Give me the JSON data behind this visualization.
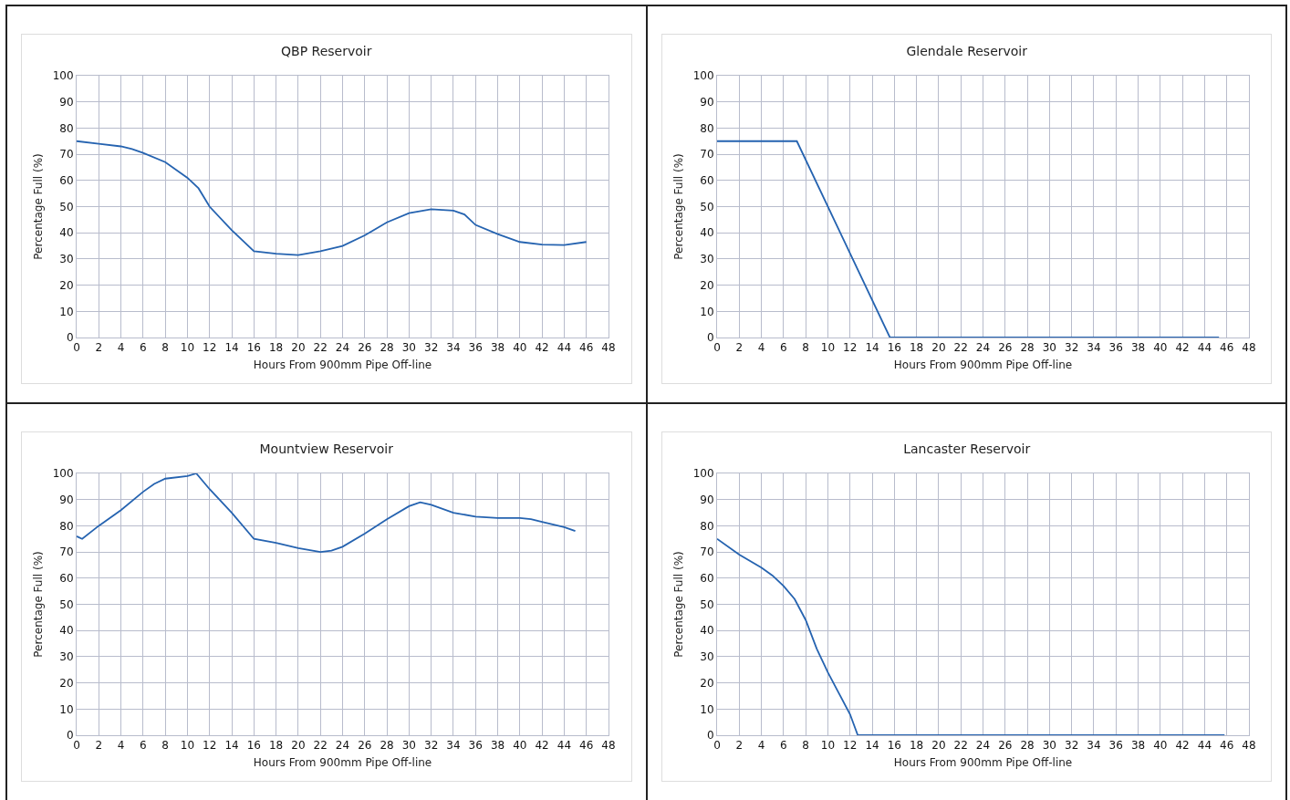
{
  "chart_data": [
    {
      "type": "line",
      "title": "QBP Reservoir",
      "xlabel": "Hours From 900mm Pipe Off-line",
      "ylabel": "Percentage Full (%)",
      "xlim": [
        0,
        48
      ],
      "xticks": [
        0,
        2,
        4,
        6,
        8,
        10,
        12,
        14,
        16,
        18,
        20,
        22,
        24,
        26,
        28,
        30,
        32,
        34,
        36,
        38,
        40,
        42,
        44,
        46,
        48
      ],
      "ylim": [
        0,
        100
      ],
      "yticks": [
        0,
        10,
        20,
        30,
        40,
        50,
        60,
        70,
        80,
        90,
        100
      ],
      "grid": true,
      "marker": "none",
      "line_style": "solid",
      "series": [
        {
          "color": "#2563b0",
          "x": [
            0,
            2,
            4,
            5,
            6,
            8,
            10,
            11,
            12,
            14,
            16,
            18,
            20,
            22,
            24,
            26,
            28,
            30,
            32,
            34,
            35,
            36,
            38,
            40,
            42,
            44,
            46
          ],
          "values": [
            75,
            74,
            73,
            72,
            70.5,
            67,
            61,
            57,
            50,
            41,
            33,
            32,
            31.5,
            33,
            35,
            39,
            44,
            47.5,
            49,
            48.5,
            47,
            43,
            39.5,
            36.5,
            35.5,
            35.3,
            36.5
          ]
        }
      ]
    },
    {
      "type": "line",
      "title": "Glendale Reservoir",
      "xlabel": "Hours From 900mm Pipe Off-line",
      "ylabel": "Percentage Full (%)",
      "xlim": [
        0,
        48
      ],
      "xticks": [
        0,
        2,
        4,
        6,
        8,
        10,
        12,
        14,
        16,
        18,
        20,
        22,
        24,
        26,
        28,
        30,
        32,
        34,
        36,
        38,
        40,
        42,
        44,
        46,
        48
      ],
      "ylim": [
        0,
        100
      ],
      "yticks": [
        0,
        10,
        20,
        30,
        40,
        50,
        60,
        70,
        80,
        90,
        100
      ],
      "grid": true,
      "marker": "none",
      "line_style": "solid",
      "series": [
        {
          "color": "#2563b0",
          "x": [
            0,
            7.2,
            15.6,
            45.3
          ],
          "values": [
            75,
            75,
            0,
            0
          ]
        }
      ]
    },
    {
      "type": "line",
      "title": "Mountview Reservoir",
      "xlabel": "Hours From 900mm Pipe Off-line",
      "ylabel": "Percentage Full (%)",
      "xlim": [
        0,
        48
      ],
      "xticks": [
        0,
        2,
        4,
        6,
        8,
        10,
        12,
        14,
        16,
        18,
        20,
        22,
        24,
        26,
        28,
        30,
        32,
        34,
        36,
        38,
        40,
        42,
        44,
        46,
        48
      ],
      "ylim": [
        0,
        100
      ],
      "yticks": [
        0,
        10,
        20,
        30,
        40,
        50,
        60,
        70,
        80,
        90,
        100
      ],
      "grid": true,
      "marker": "none",
      "line_style": "solid",
      "series": [
        {
          "color": "#2563b0",
          "x": [
            0,
            0.5,
            2,
            4,
            6,
            7,
            8,
            10,
            10.8,
            12,
            14,
            16,
            18,
            20,
            22,
            23,
            24,
            26,
            28,
            30,
            31,
            32,
            34,
            36,
            38,
            40,
            41,
            42,
            44,
            45
          ],
          "values": [
            76,
            75,
            80,
            86,
            93,
            96,
            98,
            99,
            100,
            94,
            85,
            75,
            73.5,
            71.5,
            70,
            70.5,
            72,
            77,
            82.5,
            87.5,
            89,
            88,
            85,
            83.5,
            83,
            83,
            82.5,
            81.5,
            79.5,
            78
          ]
        }
      ]
    },
    {
      "type": "line",
      "title": "Lancaster Reservoir",
      "xlabel": "Hours From 900mm Pipe Off-line",
      "ylabel": "Percentage Full (%)",
      "xlim": [
        0,
        48
      ],
      "xticks": [
        0,
        2,
        4,
        6,
        8,
        10,
        12,
        14,
        16,
        18,
        20,
        22,
        24,
        26,
        28,
        30,
        32,
        34,
        36,
        38,
        40,
        42,
        44,
        46,
        48
      ],
      "ylim": [
        0,
        100
      ],
      "yticks": [
        0,
        10,
        20,
        30,
        40,
        50,
        60,
        70,
        80,
        90,
        100
      ],
      "grid": true,
      "marker": "none",
      "line_style": "solid",
      "series": [
        {
          "color": "#2563b0",
          "x": [
            0,
            2,
            4,
            5,
            6,
            7,
            8,
            9,
            10,
            11,
            12,
            12.7,
            45.8
          ],
          "values": [
            75,
            69,
            64,
            61,
            57,
            52,
            44,
            33,
            24,
            16,
            8,
            0,
            0
          ]
        }
      ]
    }
  ]
}
